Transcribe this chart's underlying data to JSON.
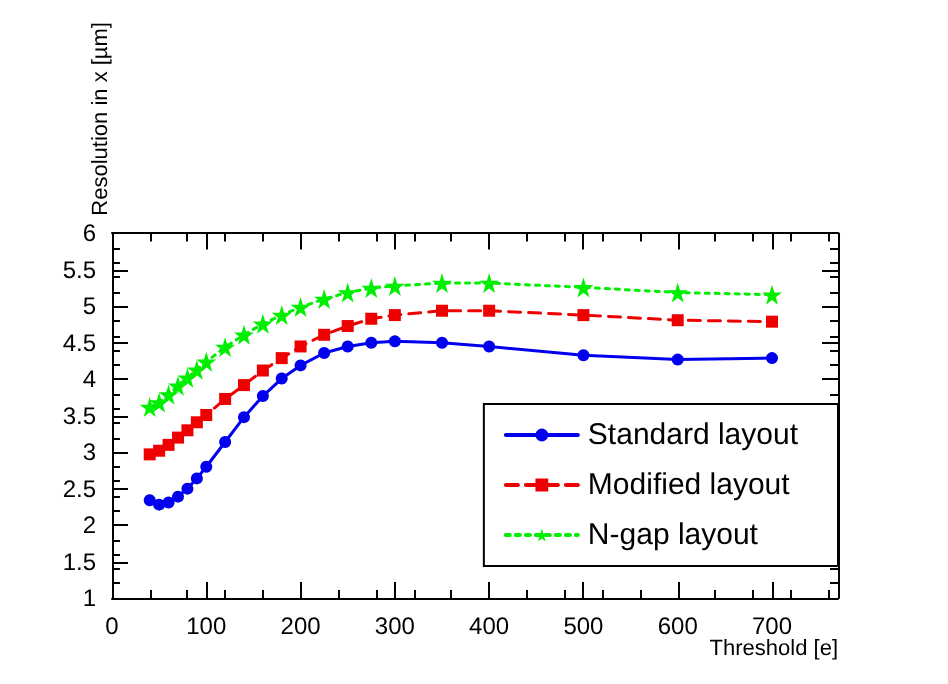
{
  "chart_data": {
    "type": "line",
    "xlabel": "Threshold [e]",
    "ylabel": "Resolution in x [µm]",
    "x": [
      40,
      50,
      60,
      70,
      80,
      90,
      100,
      120,
      140,
      160,
      180,
      200,
      225,
      250,
      275,
      300,
      350,
      400,
      500,
      600,
      700
    ],
    "series": [
      {
        "name": "Standard layout",
        "color": "#0000ee",
        "marker": "circle",
        "line_style": "solid",
        "values": [
          2.34,
          2.28,
          2.31,
          2.39,
          2.5,
          2.64,
          2.8,
          3.14,
          3.48,
          3.77,
          4.01,
          4.19,
          4.36,
          4.45,
          4.5,
          4.52,
          4.5,
          4.45,
          4.33,
          4.27,
          4.29
        ]
      },
      {
        "name": "Modified layout",
        "color": "#ee0000",
        "marker": "square",
        "line_style": "dashed",
        "values": [
          2.97,
          3.02,
          3.1,
          3.2,
          3.3,
          3.41,
          3.51,
          3.73,
          3.92,
          4.12,
          4.29,
          4.45,
          4.61,
          4.73,
          4.83,
          4.88,
          4.94,
          4.94,
          4.88,
          4.81,
          4.79
        ]
      },
      {
        "name": "N-gap layout",
        "color": "#00ee00",
        "marker": "star",
        "line_style": "dotted",
        "values": [
          3.62,
          3.68,
          3.79,
          3.91,
          4.02,
          4.13,
          4.24,
          4.44,
          4.61,
          4.76,
          4.88,
          4.99,
          5.1,
          5.19,
          5.25,
          5.28,
          5.32,
          5.32,
          5.26,
          5.19,
          5.16
        ]
      }
    ],
    "xlim": [
      0,
      770
    ],
    "xticks": [
      0,
      100,
      200,
      300,
      400,
      500,
      600,
      700
    ],
    "ylim": [
      1,
      6
    ],
    "yticks": [
      1,
      1.5,
      2,
      2.5,
      3,
      3.5,
      4,
      4.5,
      5,
      5.5,
      6
    ],
    "grid": false,
    "legend": "bottom right"
  }
}
